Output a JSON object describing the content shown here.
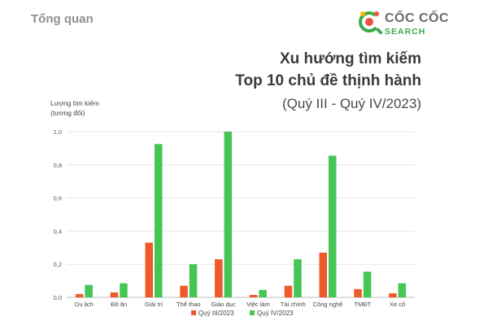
{
  "header": {
    "section_title": "Tổng quan",
    "brand_name": "CỐC CỐC",
    "brand_sub": "SEARCH"
  },
  "title": {
    "line1": "Xu hướng tìm kiếm",
    "line2": "Top 10 chủ đề thịnh hành",
    "line3": "(Quý III - Quý IV/2023)"
  },
  "ylabel": {
    "line1": "Lượng tìm kiếm",
    "line2": "(tương đối)"
  },
  "colors": {
    "series1": "#ef5a2b",
    "series2": "#45c553",
    "logo_red": "#e9523c",
    "logo_yellow": "#f5b800",
    "logo_green": "#3aaa4a"
  },
  "chart_data": {
    "type": "bar",
    "title": "Xu hướng tìm kiếm Top 10 chủ đề thịnh hành (Quý III - Quý IV/2023)",
    "ylabel": "Lượng tìm kiếm (tương đối)",
    "xlabel": "",
    "ylim": [
      0,
      1.0
    ],
    "yticks": [
      "0,0",
      "0,2",
      "0,4",
      "0,6",
      "0,8",
      "1,0"
    ],
    "categories": [
      "Du lịch",
      "Đồ ăn",
      "Giải trí",
      "Thể thao",
      "Giáo dục",
      "Việc làm",
      "Tài chính",
      "Công nghệ",
      "TMĐT",
      "Xe cộ"
    ],
    "series": [
      {
        "name": "Quý III/2023",
        "values": [
          0.02,
          0.03,
          0.33,
          0.07,
          0.23,
          0.015,
          0.07,
          0.27,
          0.05,
          0.025
        ]
      },
      {
        "name": "Quý IV/2023",
        "values": [
          0.075,
          0.085,
          0.925,
          0.2,
          1.0,
          0.045,
          0.23,
          0.855,
          0.155,
          0.085
        ]
      }
    ],
    "grid": true,
    "legend": "bottom"
  }
}
